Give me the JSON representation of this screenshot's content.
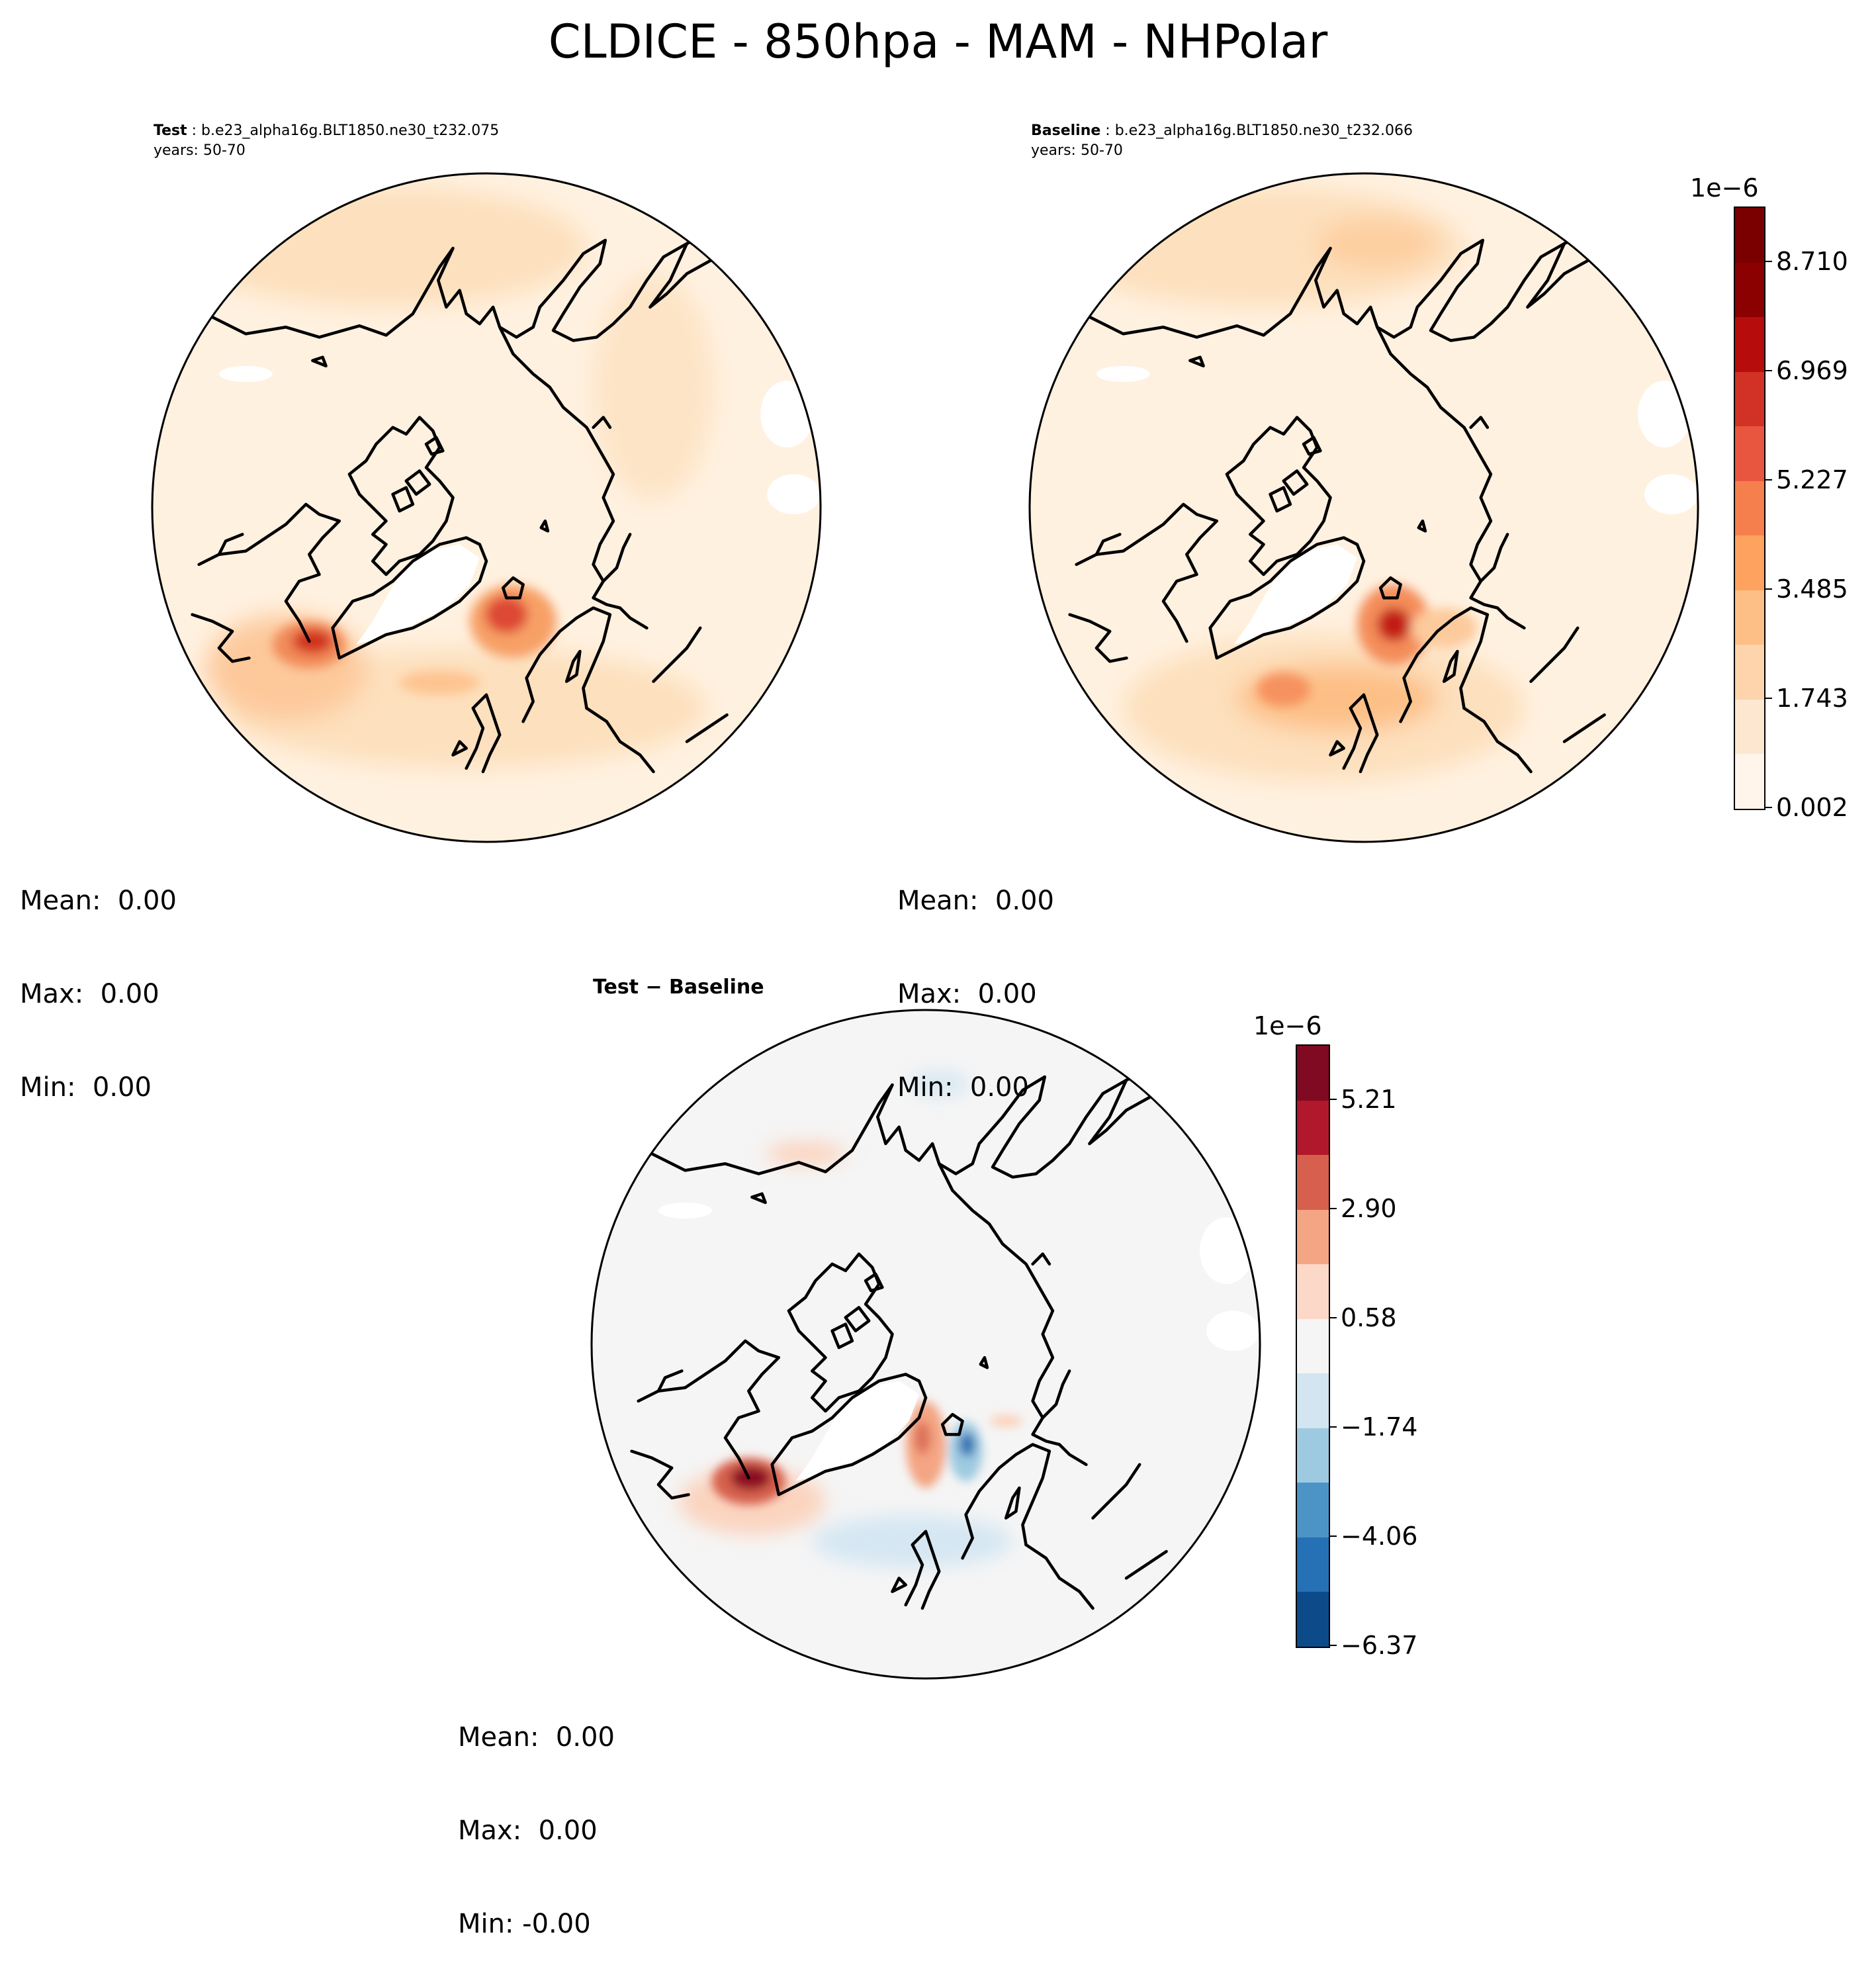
{
  "figure": {
    "title": "CLDICE - 850hpa - MAM - NHPolar"
  },
  "panels": [
    {
      "id": "test",
      "label": "Test",
      "case": "b.e23_alpha16g.BLT1850.ne30_t232.075",
      "years": "years: 50-70",
      "stats": {
        "mean": "Mean:  0.00",
        "max": "Max:  0.00",
        "min": "Min:  0.00"
      }
    },
    {
      "id": "baseline",
      "label": "Baseline",
      "case": "b.e23_alpha16g.BLT1850.ne30_t232.066",
      "years": "years: 50-70",
      "stats": {
        "mean": "Mean:  0.00",
        "max": "Max:  0.00",
        "min": "Min:  0.00"
      }
    },
    {
      "id": "difference",
      "label": "Test − Baseline",
      "stats": {
        "mean": "Mean:  0.00",
        "max": "Max:  0.00",
        "min": "Min: -0.00"
      }
    }
  ],
  "colorbars": {
    "absolute": {
      "exponent": "1e−6",
      "ticks": [
        "0.002",
        "1.743",
        "3.485",
        "5.227",
        "6.969",
        "8.710"
      ],
      "colors": [
        "#fff5eb",
        "#fee7d1",
        "#fdd4ab",
        "#fdbf86",
        "#fda35f",
        "#f67f4e",
        "#e9563f",
        "#d23226",
        "#b70c0c",
        "#8b0000",
        "#7a0000"
      ],
      "colormap": "OrRd"
    },
    "difference": {
      "exponent": "1e−6",
      "ticks": [
        "−6.37",
        "−4.06",
        "−1.74",
        "0.58",
        "2.90",
        "5.21"
      ],
      "colors": [
        "#0d4a8a",
        "#2670b5",
        "#4d94c6",
        "#9ecae1",
        "#d2e5f1",
        "#f5f5f5",
        "#fbd8c7",
        "#f4a583",
        "#d6604d",
        "#b2182b",
        "#7f0a22"
      ],
      "colormap": "RdBu_r"
    }
  },
  "map": {
    "projection": "North Polar Stereographic",
    "coastlines": true
  }
}
